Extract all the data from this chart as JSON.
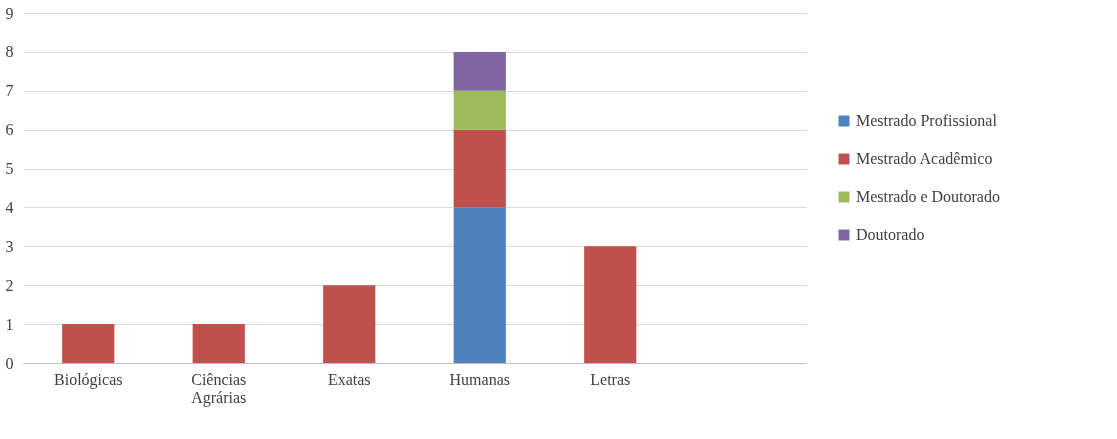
{
  "chart_data": {
    "type": "bar",
    "stacked": true,
    "categories": [
      "Biológicas",
      "Ciências Agrárias",
      "Exatas",
      "Humanas",
      "Letras",
      null
    ],
    "series": [
      {
        "name": "Mestrado Profissional",
        "color": "#4f81bd",
        "values": [
          0,
          0,
          0,
          4,
          0,
          null
        ]
      },
      {
        "name": "Mestrado Acadêmico",
        "color": "#c0504d",
        "values": [
          1,
          1,
          2,
          2,
          3,
          null
        ]
      },
      {
        "name": "Mestrado e Doutorado",
        "color": "#9bbb59",
        "values": [
          0,
          0,
          0,
          1,
          0,
          null
        ]
      },
      {
        "name": "Doutorado",
        "color": "#8064a2",
        "values": [
          0,
          0,
          0,
          1,
          0,
          null
        ]
      }
    ],
    "ylim": [
      0,
      9
    ],
    "yticks": [
      0,
      1,
      2,
      3,
      4,
      5,
      6,
      7,
      8,
      9
    ],
    "grid": "y",
    "legend": "right"
  }
}
